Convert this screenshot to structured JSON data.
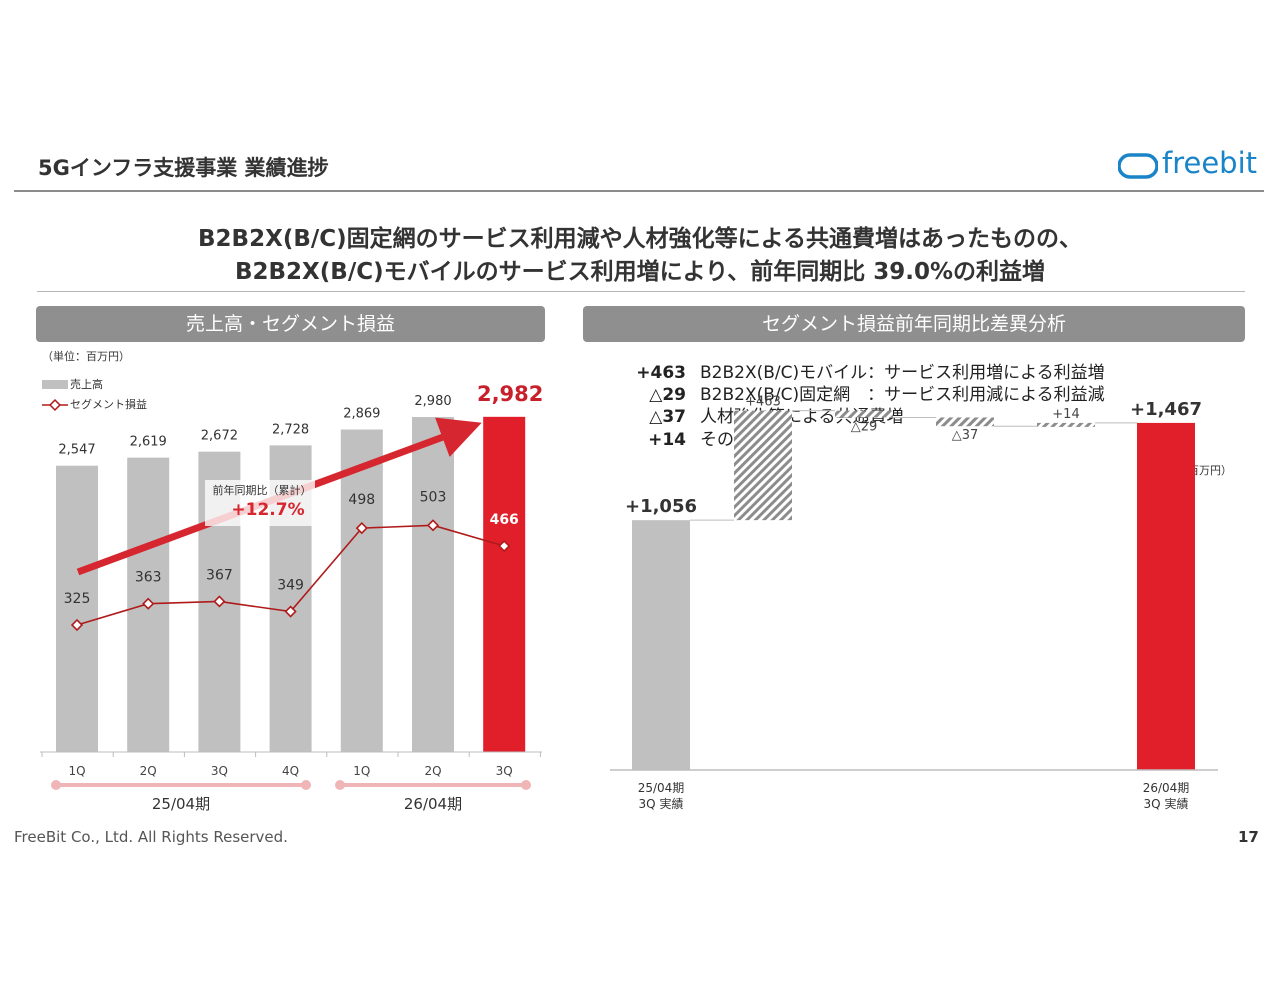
{
  "header": {
    "title": "5Gインフラ支援事業 業績進捗",
    "logo_text": "freebit"
  },
  "headline": {
    "line1": "B2B2X(B/C)固定網のサービス利用減や人材強化等による共通費増はあったものの、",
    "line2": "B2B2X(B/C)モバイルのサービス利用増により、前年同期比 39.0%の利益増"
  },
  "left_panel": {
    "title": "売上高・セグメント損益",
    "unit": "（単位：百万円）",
    "annotation_label": "前年同期比（累計）",
    "annotation_value": "+12.7%",
    "fiscal_groups": [
      "25/04期",
      "26/04期"
    ]
  },
  "right_panel": {
    "title": "セグメント損益前年同期比差異分析",
    "unit": "（単位：百万円）",
    "bridge_items": [
      {
        "value": "+463",
        "text": "B2B2X(B/C)モバイル：サービス利用増による利益増"
      },
      {
        "value": "△29",
        "text": "B2B2X(B/C)固定網　：サービス利用減による利益減"
      },
      {
        "value": "△37",
        "text": "人材強化等による共通費増"
      },
      {
        "value": "+14",
        "text": "その他"
      }
    ]
  },
  "chart_data": [
    {
      "type": "bar",
      "title": "売上高・セグメント損益",
      "categories": [
        "1Q",
        "2Q",
        "3Q",
        "4Q",
        "1Q",
        "2Q",
        "3Q"
      ],
      "category_labels": [
        "1Q",
        "2Q",
        "3Q",
        "4Q",
        "1Q",
        "2Q",
        "3Q"
      ],
      "series": [
        {
          "name": "売上高",
          "kind": "bar",
          "values": [
            2547,
            2619,
            2672,
            2728,
            2869,
            2980,
            2982
          ],
          "labels": [
            "2,547",
            "2,619",
            "2,672",
            "2,728",
            "2,869",
            "2,980",
            "2,982"
          ]
        },
        {
          "name": "セグメント損益",
          "kind": "line",
          "values": [
            325,
            363,
            367,
            349,
            498,
            503,
            466
          ],
          "labels": [
            "325",
            "363",
            "367",
            "349",
            "498",
            "503",
            "466"
          ]
        }
      ],
      "groups": [
        {
          "label": "25/04期",
          "categories": [
            "1Q",
            "2Q",
            "3Q",
            "4Q"
          ]
        },
        {
          "label": "26/04期",
          "categories": [
            "1Q",
            "2Q",
            "3Q"
          ]
        }
      ],
      "ylim": [
        0,
        3000
      ],
      "highlight_index": 6,
      "colors": {
        "bar": "#c0c0c0",
        "highlight": "#e01f2b",
        "line": "#b01a1a",
        "arrow": "#d6262f"
      }
    },
    {
      "type": "bar",
      "subtype": "waterfall",
      "title": "セグメント損益前年同期比差異分析",
      "steps": [
        {
          "label": "25/04期 3Q 実績",
          "value": 1056,
          "kind": "total",
          "display": "+1,056"
        },
        {
          "label": "",
          "value": 463,
          "kind": "delta",
          "display": "+463"
        },
        {
          "label": "",
          "value": -29,
          "kind": "delta",
          "display": "△29"
        },
        {
          "label": "",
          "value": -37,
          "kind": "delta",
          "display": "△37"
        },
        {
          "label": "",
          "value": 14,
          "kind": "delta",
          "display": "+14"
        },
        {
          "label": "26/04期 3Q 実績",
          "value": 1467,
          "kind": "total",
          "display": "+1,467"
        }
      ],
      "axis_labels": {
        "start_line1": "25/04期",
        "start_line2": "3Q 実績",
        "end_line1": "26/04期",
        "end_line2": "3Q 実績"
      },
      "ylim": [
        0,
        1550
      ],
      "colors": {
        "start": "#c0c0c0",
        "end": "#e01f2b",
        "delta": "#8c8c8c"
      }
    }
  ],
  "footer": {
    "copyright": "FreeBit Co., Ltd. All Rights Reserved.",
    "page_number": "17"
  }
}
